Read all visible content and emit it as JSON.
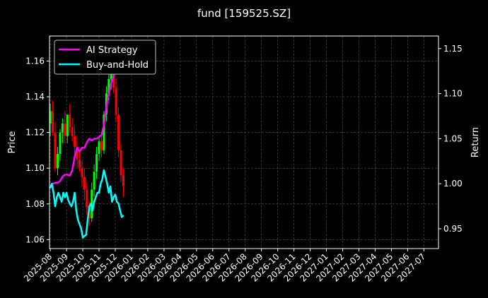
{
  "chart_data": {
    "type": "line",
    "title": "fund [159525.SZ]",
    "ylabel_left": "Price",
    "ylabel_right": "Return",
    "ylim_left": [
      1.055,
      1.174
    ],
    "ylim_right": [
      0.928,
      1.164
    ],
    "yticks_left": [
      1.06,
      1.08,
      1.1,
      1.12,
      1.14,
      1.16
    ],
    "yticks_right": [
      0.95,
      1.0,
      1.05,
      1.1,
      1.15
    ],
    "x_ticks": [
      "2025-08",
      "2025-09",
      "2025-10",
      "2025-11",
      "2025-12",
      "2026-01",
      "2026-02",
      "2026-03",
      "2026-04",
      "2026-05",
      "2026-06",
      "2026-07",
      "2026-08",
      "2026-09",
      "2026-10",
      "2026-11",
      "2026-12",
      "2027-01",
      "2027-02",
      "2027-03",
      "2027-04",
      "2027-05",
      "2027-06",
      "2027-07"
    ],
    "x_range_months": [
      -0.05,
      23.9
    ],
    "grid": true,
    "legend": {
      "location": "top-left",
      "entries": [
        {
          "name": "AI Strategy",
          "color": "#ff00ff"
        },
        {
          "name": "Buy-and-Hold",
          "color": "#00ffff"
        }
      ]
    },
    "colors": {
      "up": "#00ff00",
      "down": "#ff0000",
      "strategy": "#ff00ff",
      "buyhold": "#00ffff",
      "grid": "#555555"
    },
    "series": [
      {
        "name": "AI Strategy",
        "axis": "right",
        "x": [
          0.0,
          0.15,
          0.3,
          0.45,
          0.6,
          0.75,
          0.9,
          1.05,
          1.2,
          1.35,
          1.5,
          1.65,
          1.8,
          1.95,
          2.1,
          2.25,
          2.4,
          2.55,
          2.7,
          2.85,
          3.0,
          3.15,
          3.3,
          3.45,
          3.6,
          3.75,
          3.9,
          4.05,
          4.2,
          4.35,
          4.5
        ],
        "values": [
          0.998,
          1.0,
          1.001,
          1.001,
          1.003,
          1.008,
          1.01,
          1.01,
          1.009,
          1.015,
          1.03,
          1.04,
          1.036,
          1.04,
          1.04,
          1.046,
          1.05,
          1.048,
          1.05,
          1.05,
          1.052,
          1.054,
          1.065,
          1.085,
          1.1,
          1.112,
          1.12,
          1.14,
          1.15,
          1.158,
          1.16
        ]
      },
      {
        "name": "Buy-and-Hold",
        "axis": "right",
        "x": [
          0.0,
          0.1,
          0.2,
          0.3,
          0.4,
          0.5,
          0.6,
          0.7,
          0.8,
          0.9,
          1.0,
          1.1,
          1.2,
          1.3,
          1.4,
          1.5,
          1.6,
          1.7,
          1.8,
          1.9,
          2.0,
          2.1,
          2.2,
          2.3,
          2.4,
          2.5,
          2.6,
          2.7,
          2.8,
          2.9,
          3.0,
          3.1,
          3.2,
          3.3,
          3.4,
          3.5,
          3.6,
          3.7,
          3.8,
          3.9,
          4.0,
          4.1,
          4.2,
          4.3,
          4.4,
          4.5
        ],
        "values": [
          0.995,
          1.0,
          0.99,
          0.975,
          0.985,
          0.99,
          0.985,
          0.98,
          0.99,
          0.985,
          0.99,
          0.982,
          0.978,
          0.975,
          0.98,
          0.99,
          0.97,
          0.96,
          0.955,
          0.95,
          0.94,
          0.942,
          0.943,
          0.96,
          0.975,
          0.978,
          0.97,
          0.98,
          0.985,
          0.99,
          0.99,
          1.0,
          1.005,
          1.015,
          1.008,
          1.0,
          0.99,
          0.997,
          0.98,
          0.985,
          0.988,
          0.98,
          0.978,
          0.97,
          0.963,
          0.965
        ]
      }
    ],
    "candles": {
      "axis": "left",
      "x": [
        0.0,
        0.15,
        0.3,
        0.45,
        0.6,
        0.75,
        0.9,
        1.05,
        1.2,
        1.35,
        1.5,
        1.65,
        1.8,
        1.95,
        2.1,
        2.25,
        2.4,
        2.55,
        2.7,
        2.85,
        3.0,
        3.15,
        3.3,
        3.45,
        3.6,
        3.75,
        3.9,
        4.05,
        4.2,
        4.35,
        4.5
      ],
      "open": [
        1.125,
        1.132,
        1.12,
        1.1,
        1.108,
        1.12,
        1.125,
        1.118,
        1.13,
        1.123,
        1.118,
        1.112,
        1.105,
        1.1,
        1.095,
        1.088,
        1.078,
        1.072,
        1.088,
        1.098,
        1.108,
        1.115,
        1.11,
        1.13,
        1.142,
        1.15,
        1.158,
        1.145,
        1.13,
        1.11,
        1.096
      ],
      "high": [
        1.136,
        1.138,
        1.126,
        1.112,
        1.122,
        1.128,
        1.132,
        1.128,
        1.136,
        1.128,
        1.124,
        1.118,
        1.11,
        1.104,
        1.1,
        1.092,
        1.082,
        1.092,
        1.102,
        1.112,
        1.118,
        1.12,
        1.132,
        1.146,
        1.156,
        1.162,
        1.164,
        1.15,
        1.134,
        1.114,
        1.1
      ],
      "low": [
        1.118,
        1.118,
        1.098,
        1.096,
        1.104,
        1.114,
        1.114,
        1.114,
        1.12,
        1.115,
        1.108,
        1.1,
        1.098,
        1.09,
        1.082,
        1.074,
        1.068,
        1.07,
        1.084,
        1.094,
        1.104,
        1.106,
        1.108,
        1.126,
        1.138,
        1.144,
        1.142,
        1.126,
        1.106,
        1.092,
        1.084
      ],
      "close": [
        1.132,
        1.12,
        1.1,
        1.108,
        1.12,
        1.125,
        1.118,
        1.13,
        1.123,
        1.118,
        1.112,
        1.105,
        1.1,
        1.095,
        1.088,
        1.078,
        1.072,
        1.088,
        1.098,
        1.108,
        1.115,
        1.11,
        1.13,
        1.142,
        1.15,
        1.158,
        1.145,
        1.13,
        1.11,
        1.096,
        1.09
      ]
    }
  }
}
